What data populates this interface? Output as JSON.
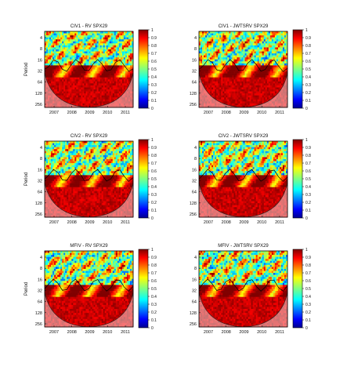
{
  "figure": {
    "panels": [
      {
        "title": "CIV1 - RV  SPX29",
        "ylabel": "Period"
      },
      {
        "title": "CIV1 - JWTSRV  SPX29",
        "ylabel": ""
      },
      {
        "title": "CIV2 - RV  SPX29",
        "ylabel": "Period"
      },
      {
        "title": "CIV2 - JWTSRV  SPX29",
        "ylabel": ""
      },
      {
        "title": "MFIV - RV  SPX29",
        "ylabel": "Period"
      },
      {
        "title": "MFIV - JWTSRV  SPX29",
        "ylabel": ""
      }
    ]
  },
  "chart_data": [
    {
      "type": "heatmap",
      "title": "CIV1 - RV  SPX29",
      "xlabel": "",
      "ylabel": "Period",
      "x_ticks": [
        "2007",
        "2008",
        "2009",
        "2010",
        "2011"
      ],
      "y_ticks": [
        "4",
        "8",
        "16",
        "32",
        "64",
        "128",
        "256"
      ],
      "colorbar": {
        "range": [
          0,
          1
        ],
        "ticks": [
          "0",
          "0.1",
          "0.2",
          "0.3",
          "0.4",
          "0.5",
          "0.6",
          "0.7",
          "0.8",
          "0.9",
          "1"
        ]
      },
      "description_pattern": "high coherence (red) at periods >= 32, mixed at short periods, cone of influence shaded"
    },
    {
      "type": "heatmap",
      "title": "CIV1 - JWTSRV  SPX29",
      "xlabel": "",
      "ylabel": "",
      "x_ticks": [
        "2007",
        "2008",
        "2009",
        "2010",
        "2011"
      ],
      "y_ticks": [
        "4",
        "8",
        "16",
        "32",
        "64",
        "128",
        "256"
      ],
      "colorbar": {
        "range": [
          0,
          1
        ],
        "ticks": [
          "0",
          "0.1",
          "0.2",
          "0.3",
          "0.4",
          "0.5",
          "0.6",
          "0.7",
          "0.8",
          "0.9",
          "1"
        ]
      }
    },
    {
      "type": "heatmap",
      "title": "CIV2 - RV  SPX29",
      "xlabel": "",
      "ylabel": "Period",
      "x_ticks": [
        "2007",
        "2008",
        "2009",
        "2010",
        "2011"
      ],
      "y_ticks": [
        "4",
        "8",
        "16",
        "32",
        "64",
        "128",
        "256"
      ],
      "colorbar": {
        "range": [
          0,
          1
        ],
        "ticks": [
          "0",
          "0.1",
          "0.2",
          "0.3",
          "0.4",
          "0.5",
          "0.6",
          "0.7",
          "0.8",
          "0.9",
          "1"
        ]
      }
    },
    {
      "type": "heatmap",
      "title": "CIV2 - JWTSRV  SPX29",
      "xlabel": "",
      "ylabel": "",
      "x_ticks": [
        "2007",
        "2008",
        "2009",
        "2010",
        "2011"
      ],
      "y_ticks": [
        "4",
        "8",
        "16",
        "32",
        "64",
        "128",
        "256"
      ],
      "colorbar": {
        "range": [
          0,
          1
        ],
        "ticks": [
          "0",
          "0.1",
          "0.2",
          "0.3",
          "0.4",
          "0.5",
          "0.6",
          "0.7",
          "0.8",
          "0.9",
          "1"
        ]
      }
    },
    {
      "type": "heatmap",
      "title": "MFIV - RV  SPX29",
      "xlabel": "",
      "ylabel": "Period",
      "x_ticks": [
        "2007",
        "2008",
        "2009",
        "2010",
        "2011"
      ],
      "y_ticks": [
        "4",
        "8",
        "16",
        "32",
        "64",
        "128",
        "256"
      ],
      "colorbar": {
        "range": [
          0,
          1
        ],
        "ticks": [
          "0",
          "0.1",
          "0.2",
          "0.3",
          "0.4",
          "0.5",
          "0.6",
          "0.7",
          "0.8",
          "0.9",
          "1"
        ]
      }
    },
    {
      "type": "heatmap",
      "title": "MFIV - JWTSRV  SPX29",
      "xlabel": "",
      "ylabel": "",
      "x_ticks": [
        "2007",
        "2008",
        "2009",
        "2010",
        "2011"
      ],
      "y_ticks": [
        "4",
        "8",
        "16",
        "32",
        "64",
        "128",
        "256"
      ],
      "colorbar": {
        "range": [
          0,
          1
        ],
        "ticks": [
          "0",
          "0.1",
          "0.2",
          "0.3",
          "0.4",
          "0.5",
          "0.6",
          "0.7",
          "0.8",
          "0.9",
          "1"
        ]
      }
    }
  ],
  "colors": {
    "jet_low": "#00008f",
    "jet_mid": "#80ff80",
    "jet_high": "#800000",
    "cone_shade": "#ffffff"
  }
}
